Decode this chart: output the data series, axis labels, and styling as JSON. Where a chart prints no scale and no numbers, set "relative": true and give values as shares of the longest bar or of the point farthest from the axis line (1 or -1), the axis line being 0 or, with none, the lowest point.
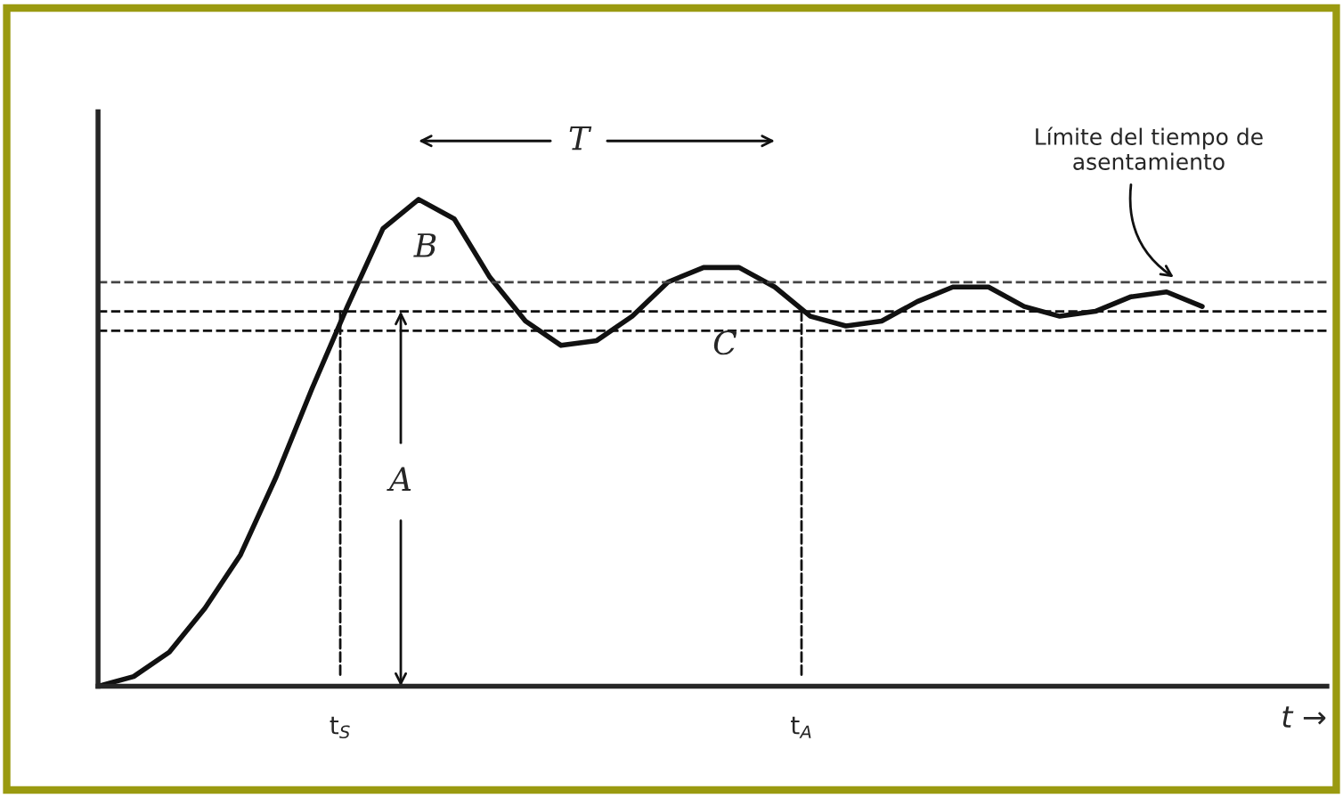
{
  "chart_data": {
    "type": "line",
    "relative": true,
    "xlabel": "t →",
    "categories": [
      null,
      null,
      null,
      null,
      null,
      null,
      null,
      null,
      null,
      null,
      null,
      null,
      null,
      null,
      null,
      null,
      null,
      null,
      null,
      null,
      null,
      null,
      null,
      null,
      null,
      null,
      null,
      null,
      null,
      null,
      null,
      null
    ],
    "series": [
      {
        "color": "#111111",
        "values": [
          0,
          0.02,
          0.07,
          0.16,
          0.27,
          0.43,
          0.61,
          0.78,
          0.94,
          1,
          0.96,
          0.84,
          0.75,
          0.7,
          0.71,
          0.76,
          0.83,
          0.86,
          0.86,
          0.82,
          0.76,
          0.74,
          0.75,
          0.79,
          0.82,
          0.82,
          0.78,
          0.76,
          0.77,
          0.8,
          0.81,
          0.78
        ]
      }
    ],
    "ref_lines": [
      {
        "axis": "y",
        "value": 0.77,
        "line_style": "dashed",
        "color": "#111111"
      },
      {
        "axis": "y",
        "value": 0.83,
        "line_style": "dashed",
        "color": "#444444"
      },
      {
        "axis": "y",
        "value": 0.73,
        "line_style": "dashed",
        "color": "#111111"
      }
    ],
    "annotations": [
      "T",
      "B",
      "A",
      "C",
      "Límite del tiempo de asentamiento",
      "t$_{S}$",
      "t$_{A}$"
    ],
    "grid": false,
    "legend": false,
    "line_style": "solid",
    "marker": "none"
  }
}
